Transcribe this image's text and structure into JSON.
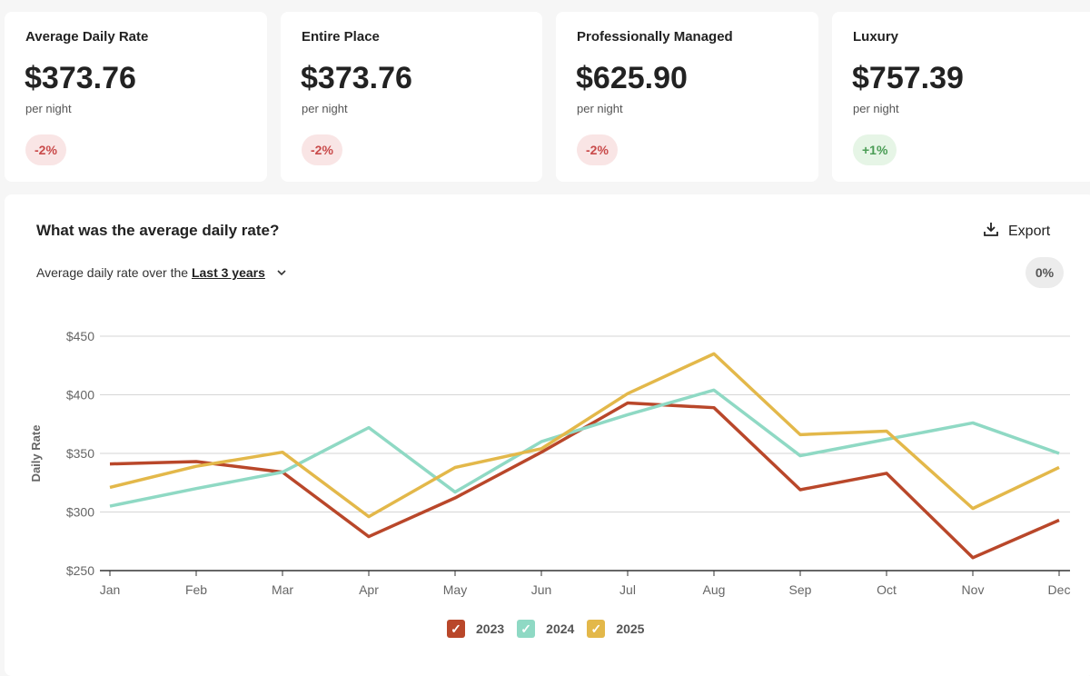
{
  "cards": [
    {
      "title": "Average Daily Rate",
      "value": "$373.76",
      "sub": "per night",
      "change": "-2%",
      "trend": "neg"
    },
    {
      "title": "Entire Place",
      "value": "$373.76",
      "sub": "per night",
      "change": "-2%",
      "trend": "neg"
    },
    {
      "title": "Professionally Managed",
      "value": "$625.90",
      "sub": "per night",
      "change": "-2%",
      "trend": "neg"
    },
    {
      "title": "Luxury",
      "value": "$757.39",
      "sub": "per night",
      "change": "+1%",
      "trend": "pos"
    }
  ],
  "panel": {
    "question": "What was the average daily rate?",
    "subtitle_prefix": "Average daily rate over the ",
    "period": "Last 3 years",
    "export_label": "Export",
    "change": "0%"
  },
  "chart_data": {
    "type": "line",
    "title": "",
    "xlabel": "",
    "ylabel": "Daily Rate",
    "ylim": [
      250,
      450
    ],
    "yticks": [
      250,
      300,
      350,
      400,
      450
    ],
    "ytick_labels": [
      "$250",
      "$300",
      "$350",
      "$400",
      "$450"
    ],
    "categories": [
      "Jan",
      "Feb",
      "Mar",
      "Apr",
      "May",
      "Jun",
      "Jul",
      "Aug",
      "Sep",
      "Oct",
      "Nov",
      "Dec"
    ],
    "grid": true,
    "legend": "bottom-center",
    "series": [
      {
        "name": "2023",
        "color": "#b9472a",
        "values": [
          341,
          343,
          334,
          279,
          312,
          351,
          393,
          389,
          319,
          333,
          261,
          293
        ]
      },
      {
        "name": "2024",
        "color": "#8fd9c4",
        "values": [
          305,
          320,
          334,
          372,
          317,
          360,
          383,
          404,
          348,
          362,
          376,
          350
        ]
      },
      {
        "name": "2025",
        "color": "#e3b84a",
        "values": [
          321,
          339,
          351,
          296,
          338,
          354,
          401,
          435,
          366,
          369,
          303,
          338
        ]
      }
    ]
  }
}
